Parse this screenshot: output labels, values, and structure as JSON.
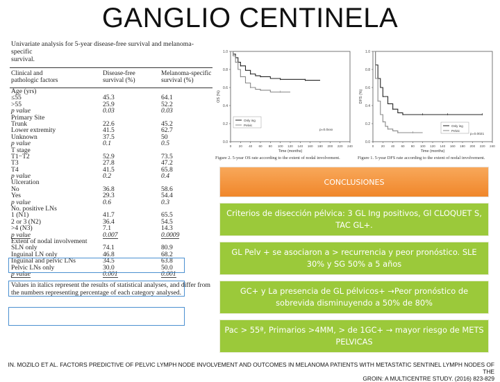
{
  "title": "GANGLIO CENTINELA",
  "table": {
    "caption_line1": "Univariate analysis for 5-year disease-free survival and melanoma-specific",
    "caption_line2": "survival.",
    "headers": {
      "col0_line1": "Clinical and",
      "col0_line2": "pathologic factors",
      "col1_line1": "Disease-free",
      "col1_line2": "survival (%)",
      "col2_line1": "Melanoma-specific",
      "col2_line2": "survival (%)"
    },
    "rows": [
      {
        "c0": "Age (yrs)",
        "c1": "",
        "c2": "",
        "style": "label"
      },
      {
        "c0": "≤55",
        "c1": "45.3",
        "c2": "64.1",
        "style": "data"
      },
      {
        "c0": ">55",
        "c1": "25.9",
        "c2": "52.2",
        "style": "data"
      },
      {
        "c0": "p value",
        "c1": "0.03",
        "c2": "0.03",
        "style": "pvalue"
      },
      {
        "c0": "Primary Site",
        "c1": "",
        "c2": "",
        "style": "label"
      },
      {
        "c0": "Trunk",
        "c1": "22.6",
        "c2": "45.2",
        "style": "data"
      },
      {
        "c0": "Lower extremity",
        "c1": "41.5",
        "c2": "62.7",
        "style": "data"
      },
      {
        "c0": "Unknown",
        "c1": "37.5",
        "c2": "50",
        "style": "data"
      },
      {
        "c0": "p value",
        "c1": "0.1",
        "c2": "0.5",
        "style": "pvalue"
      },
      {
        "c0": "T stage",
        "c1": "",
        "c2": "",
        "style": "label"
      },
      {
        "c0": "T1−T2",
        "c1": "52.9",
        "c2": "73.5",
        "style": "data"
      },
      {
        "c0": "T3",
        "c1": "27.8",
        "c2": "47.2",
        "style": "data"
      },
      {
        "c0": "T4",
        "c1": "41.5",
        "c2": "65.8",
        "style": "data"
      },
      {
        "c0": "p value",
        "c1": "0.2",
        "c2": "0.4",
        "style": "pvalue"
      },
      {
        "c0": "Ulceration",
        "c1": "",
        "c2": "",
        "style": "label"
      },
      {
        "c0": "No",
        "c1": "36.8",
        "c2": "58.6",
        "style": "data"
      },
      {
        "c0": "Yes",
        "c1": "29.3",
        "c2": "54.4",
        "style": "data"
      },
      {
        "c0": "p value",
        "c1": "0.6",
        "c2": "0.3",
        "style": "pvalue"
      },
      {
        "c0": "No. positive LNs",
        "c1": "",
        "c2": "",
        "style": "label"
      },
      {
        "c0": "1 (N1)",
        "c1": "41.7",
        "c2": "65.5",
        "style": "data"
      },
      {
        "c0": "2 or 3 (N2)",
        "c1": "36.4",
        "c2": "54.5",
        "style": "data"
      },
      {
        "c0": ">4 (N3)",
        "c1": "7.1",
        "c2": "14.3",
        "style": "data"
      },
      {
        "c0": "p value",
        "c1": "0.007",
        "c2": "0.0009",
        "style": "pvalue-ul"
      },
      {
        "c0": "Extent of nodal involvement",
        "c1": "",
        "c2": "",
        "style": "label"
      },
      {
        "c0": "SLN only",
        "c1": "74.1",
        "c2": "80.9",
        "style": "data"
      },
      {
        "c0": "Inguinal LN only",
        "c1": "46.8",
        "c2": "68.2",
        "style": "data"
      },
      {
        "c0": "Inguinal and pelvic LNs",
        "c1": "34.5",
        "c2": "63.8",
        "style": "data"
      },
      {
        "c0": "Pelvic LNs only",
        "c1": "30.0",
        "c2": "50.0",
        "style": "data"
      },
      {
        "c0": "p value",
        "c1": "0.001",
        "c2": "0.001",
        "style": "pvalue-ul"
      }
    ],
    "footnote_line1": "Values in italics represent the results of statistical analyses, and differ from",
    "footnote_line2": "the numbers representing percentage of each category analysed."
  },
  "charts": {
    "left": {
      "ylabel": "OS (%)",
      "xlabel": "Time (months)",
      "legend": [
        "Only ing",
        "Pelvic"
      ],
      "pvalue": "p=0.0xxx",
      "caption": "Figure 2. 5-year OS rate according to the extent of nodal involvement."
    },
    "right": {
      "ylabel": "DFS (%)",
      "xlabel": "Time (months)",
      "legend": [
        "Only ing",
        "Pelvic"
      ],
      "pvalue": "p=0.0021",
      "caption": "Figure 1. 5-year DFS rate according to the extent of nodal involvement."
    }
  },
  "chart_data": [
    {
      "type": "line",
      "ylabel": "OS (%)",
      "xlabel": "Time (months)",
      "xlim": [
        0,
        240
      ],
      "ylim": [
        0,
        1.0
      ],
      "x_ticks": [
        "0",
        "20",
        "40",
        "60",
        "80",
        "100",
        "120",
        "140",
        "160",
        "180",
        "200",
        "220",
        "240"
      ],
      "y_ticks": [
        "0.0",
        "0.2",
        "0.4",
        "0.6",
        "0.8",
        "1.0"
      ],
      "series": [
        {
          "name": "Only ing",
          "x": [
            0,
            5,
            10,
            15,
            20,
            30,
            40,
            50,
            60,
            80,
            100,
            120,
            150,
            180
          ],
          "y": [
            1.0,
            0.97,
            0.93,
            0.88,
            0.84,
            0.79,
            0.75,
            0.73,
            0.72,
            0.7,
            0.69,
            0.69,
            0.68,
            0.68
          ]
        },
        {
          "name": "Pelvic",
          "x": [
            0,
            5,
            10,
            15,
            20,
            30,
            40,
            50,
            60,
            80,
            100,
            120
          ],
          "y": [
            1.0,
            0.95,
            0.88,
            0.8,
            0.72,
            0.65,
            0.6,
            0.58,
            0.57,
            0.55,
            0.55,
            0.55
          ]
        }
      ]
    },
    {
      "type": "line",
      "ylabel": "DFS (%)",
      "xlabel": "Time (months)",
      "xlim": [
        0,
        240
      ],
      "ylim": [
        0,
        1.0
      ],
      "x_ticks": [
        "0",
        "20",
        "40",
        "60",
        "80",
        "100",
        "120",
        "140",
        "160",
        "180",
        "200",
        "220",
        "240"
      ],
      "y_ticks": [
        "0.0",
        "0.2",
        "0.4",
        "0.6",
        "0.8",
        "1.0"
      ],
      "series": [
        {
          "name": "Only ing",
          "x": [
            0,
            5,
            10,
            15,
            20,
            30,
            40,
            50,
            60,
            80,
            100,
            120,
            150,
            180,
            220
          ],
          "y": [
            1.0,
            0.85,
            0.7,
            0.6,
            0.5,
            0.42,
            0.36,
            0.32,
            0.3,
            0.3,
            0.3,
            0.3,
            0.3,
            0.3,
            0.3
          ]
        },
        {
          "name": "Pelvic",
          "x": [
            0,
            5,
            10,
            15,
            20,
            25,
            30,
            40,
            50,
            60,
            80,
            100
          ],
          "y": [
            1.0,
            0.7,
            0.45,
            0.3,
            0.22,
            0.17,
            0.14,
            0.12,
            0.1,
            0.1,
            0.1,
            0.1
          ]
        }
      ]
    }
  ],
  "conclusions": {
    "header": "CONCLUSIONES",
    "items": [
      "Criterios de disección pélvica: 3 GL Ing positivos, Gl CLOQUET S, TAC GL+.",
      "GL Pelv + se asociaron a > recurrencia y peor pronóstico. SLE 30% y SG 50% a 5 años",
      "GC+ y La presencia de GL pélvicos+ →Peor pronóstico de sobrevida disminuyendo a 50% de 80%",
      "Pac > 55ª, Primarios >4MM, > de 1GC+ → mayor riesgo de METS PELVICAS"
    ]
  },
  "reference": {
    "line1": "IN. MOZILO ET AL. FACTORS PREDICTIVE OF PELVIC LYMPH NODE INVOLVEMENT AND OUTCOMES IN MELANOMA PATIENTS WITH METASTATIC SENTINEL LYMPH NODES OF THE",
    "line2": "GROIN: A MULTICENTRE STUDY. (2016) 823-829"
  },
  "colors": {
    "orange": "#f0862a",
    "green": "#9bc93a",
    "highlight": "#4a8fd0"
  }
}
